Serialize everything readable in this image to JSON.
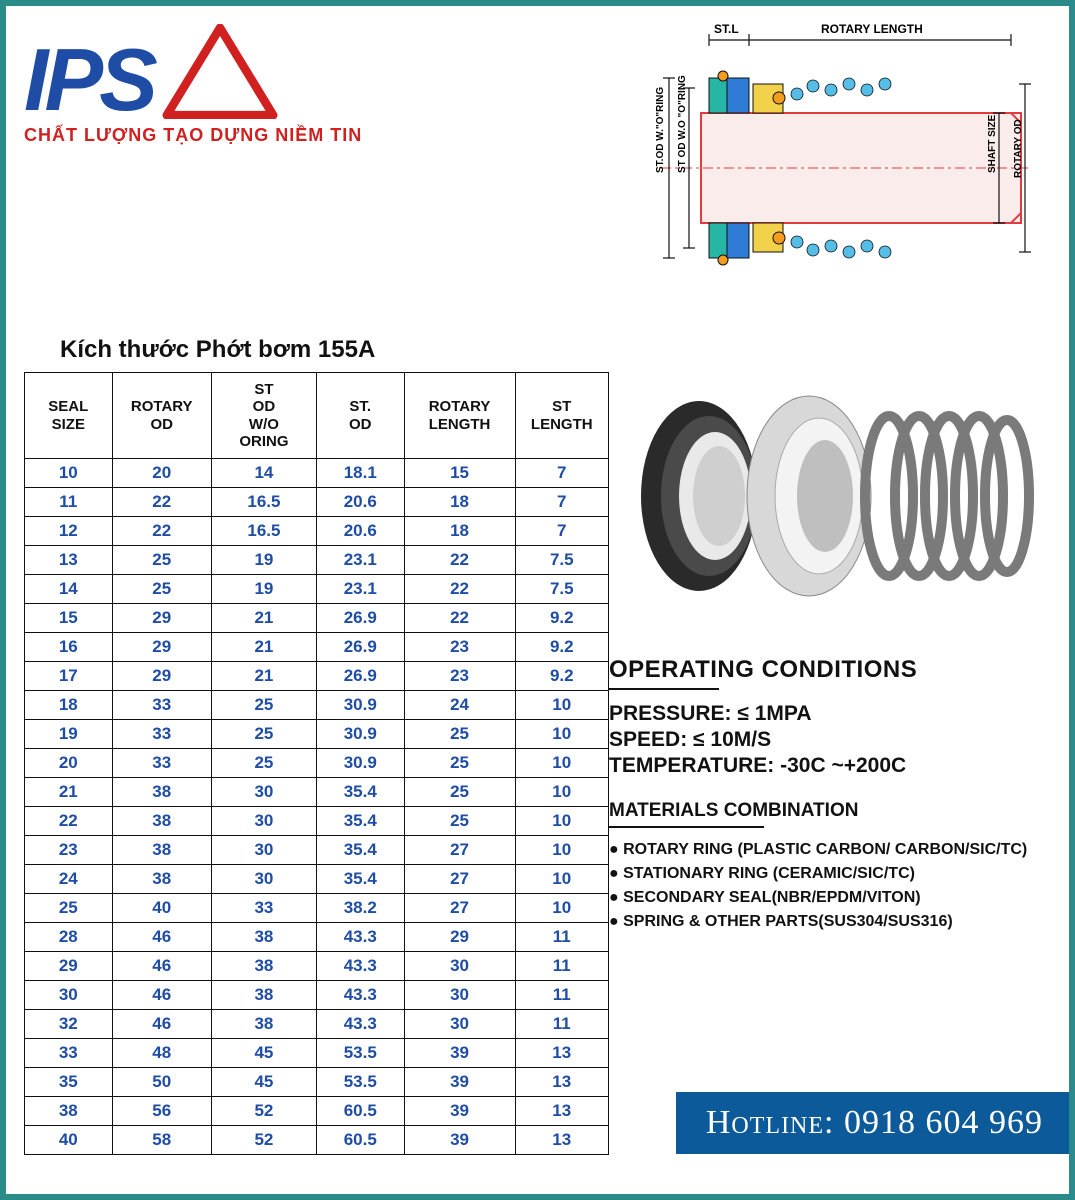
{
  "colors": {
    "page_border": "#2b8a8a",
    "logo_text": "#1f4da6",
    "logo_triangle": "#d02020",
    "tagline": "#d02020",
    "table_text": "#1f4da6",
    "table_border": "#111111",
    "hotline_bg": "#0d5a9a",
    "hotline_text": "#ffffff",
    "body_text": "#111111",
    "diagram_shaft_fill": "#fbecec",
    "diagram_stroke": "#e23b3b",
    "diagram_seal1": "#27b5a5",
    "diagram_seal2": "#2e7bd6",
    "diagram_ring": "#f59b1e",
    "diagram_cup": "#f3d24b",
    "diagram_ball": "#56bde6"
  },
  "logo": {
    "text": "IPS",
    "tagline": "CHẤT LƯỢNG TẠO DỰNG NIỀM TIN"
  },
  "diagram_labels": {
    "st_l": "ST.L",
    "rotary_length": "ROTARY LENGTH",
    "st_od_w_oring": "ST.OD W.\"O\"RING",
    "st_od_wo_oring": "ST OD W.O \"O\"RING",
    "shaft_size": "SHAFT SIZE",
    "rotary_od": "ROTARY OD"
  },
  "table": {
    "title": "Kích thước Phớt bơm 155A",
    "columns": [
      "SEAL SIZE",
      "ROTARY OD",
      "ST OD W/O ORING",
      "ST. OD",
      "ROTARY LENGTH",
      "ST LENGTH"
    ],
    "col_widths_pct": [
      15,
      17,
      18,
      15,
      19,
      16
    ],
    "rows": [
      [
        "10",
        "20",
        "14",
        "18.1",
        "15",
        "7"
      ],
      [
        "11",
        "22",
        "16.5",
        "20.6",
        "18",
        "7"
      ],
      [
        "12",
        "22",
        "16.5",
        "20.6",
        "18",
        "7"
      ],
      [
        "13",
        "25",
        "19",
        "23.1",
        "22",
        "7.5"
      ],
      [
        "14",
        "25",
        "19",
        "23.1",
        "22",
        "7.5"
      ],
      [
        "15",
        "29",
        "21",
        "26.9",
        "22",
        "9.2"
      ],
      [
        "16",
        "29",
        "21",
        "26.9",
        "23",
        "9.2"
      ],
      [
        "17",
        "29",
        "21",
        "26.9",
        "23",
        "9.2"
      ],
      [
        "18",
        "33",
        "25",
        "30.9",
        "24",
        "10"
      ],
      [
        "19",
        "33",
        "25",
        "30.9",
        "25",
        "10"
      ],
      [
        "20",
        "33",
        "25",
        "30.9",
        "25",
        "10"
      ],
      [
        "21",
        "38",
        "30",
        "35.4",
        "25",
        "10"
      ],
      [
        "22",
        "38",
        "30",
        "35.4",
        "25",
        "10"
      ],
      [
        "23",
        "38",
        "30",
        "35.4",
        "27",
        "10"
      ],
      [
        "24",
        "38",
        "30",
        "35.4",
        "27",
        "10"
      ],
      [
        "25",
        "40",
        "33",
        "38.2",
        "27",
        "10"
      ],
      [
        "28",
        "46",
        "38",
        "43.3",
        "29",
        "11"
      ],
      [
        "29",
        "46",
        "38",
        "43.3",
        "30",
        "11"
      ],
      [
        "30",
        "46",
        "38",
        "43.3",
        "30",
        "11"
      ],
      [
        "32",
        "46",
        "38",
        "43.3",
        "30",
        "11"
      ],
      [
        "33",
        "48",
        "45",
        "53.5",
        "39",
        "13"
      ],
      [
        "35",
        "50",
        "45",
        "53.5",
        "39",
        "13"
      ],
      [
        "38",
        "56",
        "52",
        "60.5",
        "39",
        "13"
      ],
      [
        "40",
        "58",
        "52",
        "60.5",
        "39",
        "13"
      ]
    ]
  },
  "operating": {
    "title": "OPERATING CONDITIONS",
    "pressure_label": "PRESSURE:",
    "pressure_value": "≤ 1MPA",
    "speed_label": "SPEED:",
    "speed_value": "≤ 10M/S",
    "temp_label": "TEMPERATURE:",
    "temp_value": "-30C  ~+200C"
  },
  "materials": {
    "title": "MATERIALS COMBINATION",
    "items": [
      "ROTARY RING (PLASTIC CARBON/ CARBON/SIC/TC)",
      "STATIONARY RING (CERAMIC/SIC/TC)",
      "SECONDARY SEAL(NBR/EPDM/VITON)",
      "SPRING & OTHER PARTS(SUS304/SUS316)"
    ]
  },
  "hotline": {
    "label": "Hotline:",
    "number": "0918 604 969"
  }
}
